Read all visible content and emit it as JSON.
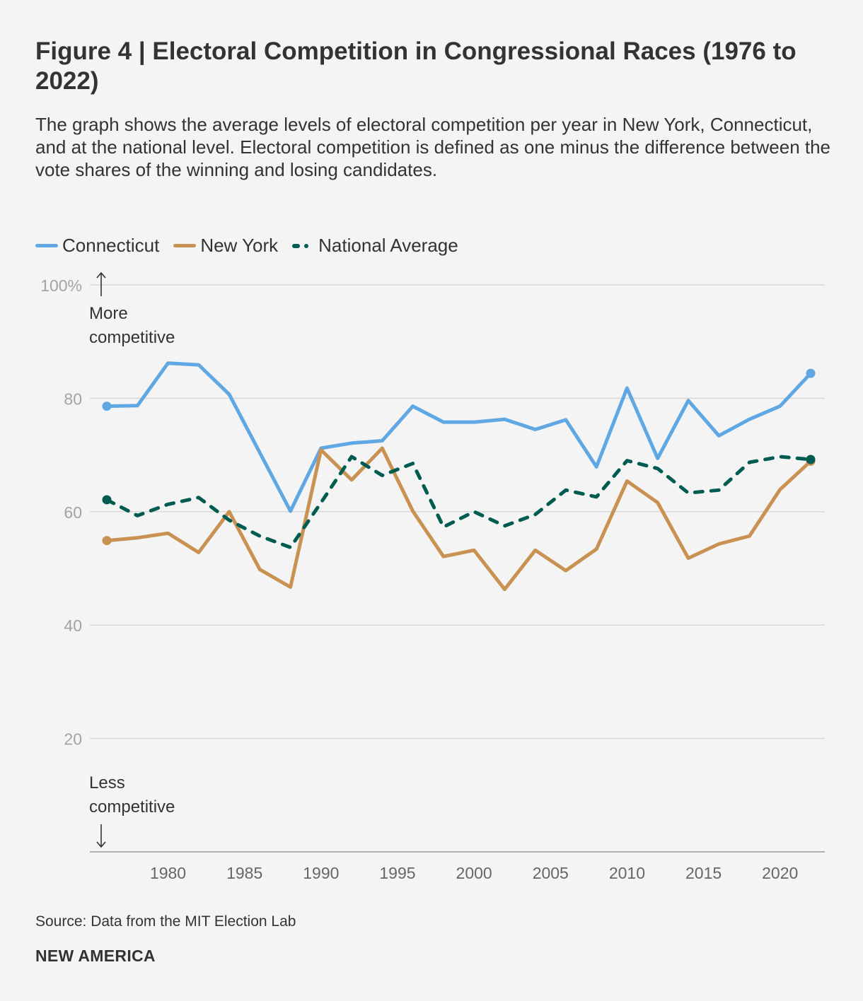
{
  "title": "Figure 4 | Electoral Competition in Congressional Races (1976 to 2022)",
  "subtitle": "The graph shows the average levels of electoral competition per year in New York, Connecticut, and at the national level. Electoral competition is defined as one minus the difference between the vote shares of the winning and losing candidates.",
  "source": "Source: Data from the MIT Election Lab",
  "brand": "NEW AMERICA",
  "chart_data": {
    "type": "line",
    "title": "Figure 4 | Electoral Competition in Congressional Races (1976 to 2022)",
    "xlabel": "",
    "ylabel": "",
    "ylim": [
      0,
      100
    ],
    "xlim": [
      1975,
      2023
    ],
    "grid": true,
    "legend": "top-left",
    "y_ticks": [
      "100%",
      "80",
      "60",
      "40",
      "20"
    ],
    "y_tick_values": [
      100,
      80,
      60,
      40,
      20
    ],
    "x_ticks": [
      1980,
      1985,
      1990,
      1995,
      2000,
      2005,
      2010,
      2015,
      2020
    ],
    "annotations": {
      "top": "More competitive",
      "bottom": "Less competitive"
    },
    "x": [
      1976,
      1978,
      1980,
      1982,
      1984,
      1986,
      1988,
      1990,
      1992,
      1994,
      1996,
      1998,
      2000,
      2002,
      2004,
      2006,
      2008,
      2010,
      2012,
      2014,
      2016,
      2018,
      2020,
      2022
    ],
    "series": [
      {
        "name": "Connecticut",
        "color": "#5fa8e3",
        "style": "solid",
        "values": [
          78.6,
          78.7,
          86.2,
          85.9,
          80.7,
          70.4,
          60.1,
          71.2,
          72.1,
          72.5,
          78.6,
          75.8,
          75.8,
          76.3,
          74.5,
          76.2,
          67.9,
          81.8,
          69.4,
          79.6,
          73.4,
          76.3,
          78.6,
          84.4
        ]
      },
      {
        "name": "New York",
        "color": "#c99252",
        "style": "solid",
        "values": [
          54.9,
          55.4,
          56.2,
          52.8,
          60.0,
          49.8,
          46.7,
          70.9,
          65.6,
          71.2,
          60.1,
          52.1,
          53.2,
          46.3,
          53.2,
          49.6,
          53.4,
          65.4,
          61.6,
          51.8,
          54.3,
          55.7,
          63.9,
          68.9
        ]
      },
      {
        "name": "National Average",
        "color": "#005c50",
        "style": "dashed",
        "values": [
          62.1,
          59.3,
          61.3,
          62.5,
          58.5,
          55.7,
          53.7,
          61.6,
          69.7,
          66.4,
          68.5,
          57.3,
          60.0,
          57.5,
          59.5,
          63.8,
          62.6,
          69.0,
          67.6,
          63.3,
          63.8,
          68.7,
          69.7,
          69.2
        ]
      }
    ]
  }
}
